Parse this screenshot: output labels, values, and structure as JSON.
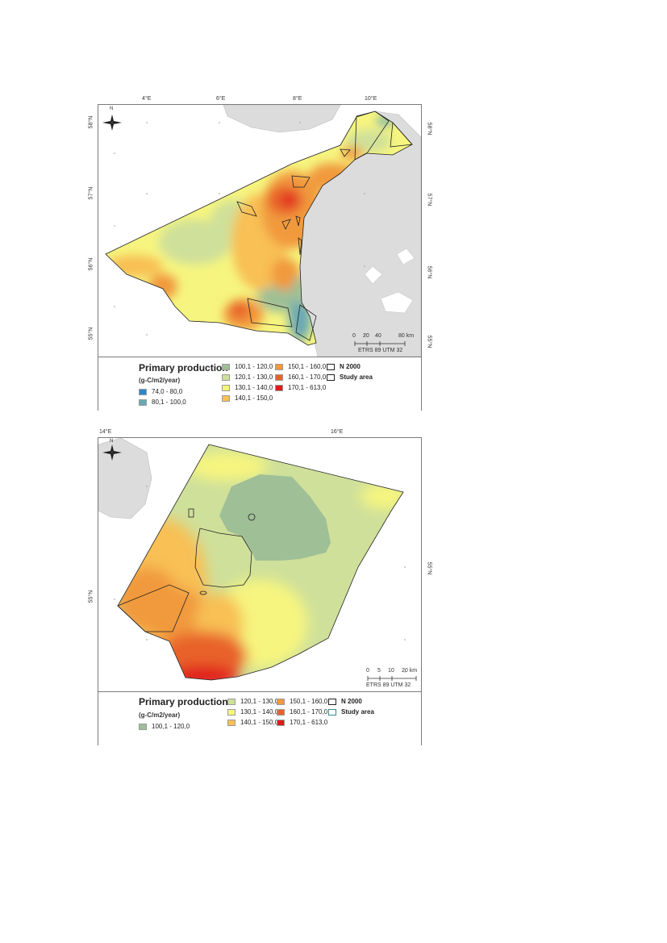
{
  "map1": {
    "ticks_top": [
      "4°E",
      "6°E",
      "8°E",
      "10°E"
    ],
    "ticks_left": [
      "58°N",
      "57°N",
      "56°N",
      "55°N"
    ],
    "ticks_right": [
      "58°N",
      "57°N",
      "56°N",
      "55°N"
    ],
    "north_label": "N",
    "scale_labels": [
      "0",
      "20",
      "40",
      "80 km"
    ],
    "crs": "ETRS 89 UTM 32",
    "legend": {
      "title": "Primary production",
      "unit": "(g-C/m2/year)",
      "col1": [
        {
          "label": "74,0 - 80,0",
          "color": "#2f86c4"
        },
        {
          "label": "80,1 - 100,0",
          "color": "#6aa9b4"
        }
      ],
      "col2": [
        {
          "label": "100,1 - 120,0",
          "color": "#9fbf97"
        },
        {
          "label": "120,1 - 130,0",
          "color": "#cfe09a"
        },
        {
          "label": "130,1 - 140,0",
          "color": "#f6f57f"
        },
        {
          "label": "140,1 - 150,0",
          "color": "#f8c055"
        }
      ],
      "col3": [
        {
          "label": "150,1 - 160,0",
          "color": "#f19a3e"
        },
        {
          "label": "160,1 - 170,0",
          "color": "#e8622a"
        },
        {
          "label": "170,1 - 613,0",
          "color": "#e01a1a"
        }
      ],
      "col4": [
        {
          "label": "N 2000",
          "color": "#ffffff"
        },
        {
          "label": "Study area",
          "color": "#ffffff"
        }
      ]
    }
  },
  "map2": {
    "ticks_top": [
      "14°E",
      "16°E"
    ],
    "ticks_left": [
      "55°N"
    ],
    "ticks_right": [
      "55°N"
    ],
    "north_label": "N",
    "scale_labels": [
      "0",
      "5",
      "10",
      "20 km"
    ],
    "crs": "ETRS 89 UTM 32",
    "legend": {
      "title": "Primary production",
      "unit": "(g-C/m2/year)",
      "col1": [
        {
          "label": "100,1 - 120,0",
          "color": "#9fbf97"
        }
      ],
      "col2": [
        {
          "label": "120,1 - 130,0",
          "color": "#cfe09a"
        },
        {
          "label": "130,1 - 140,0",
          "color": "#f6f57f"
        },
        {
          "label": "140,1 - 150,0",
          "color": "#f8c055"
        }
      ],
      "col3": [
        {
          "label": "150,1 - 160,0",
          "color": "#f19a3e"
        },
        {
          "label": "160,1 - 170,0",
          "color": "#e8622a"
        },
        {
          "label": "170,1 - 613,0",
          "color": "#e01a1a"
        }
      ],
      "col4": [
        {
          "label": "N 2000",
          "color": "#ffffff"
        },
        {
          "label": "Study area",
          "color": "#ffffff"
        }
      ]
    }
  }
}
